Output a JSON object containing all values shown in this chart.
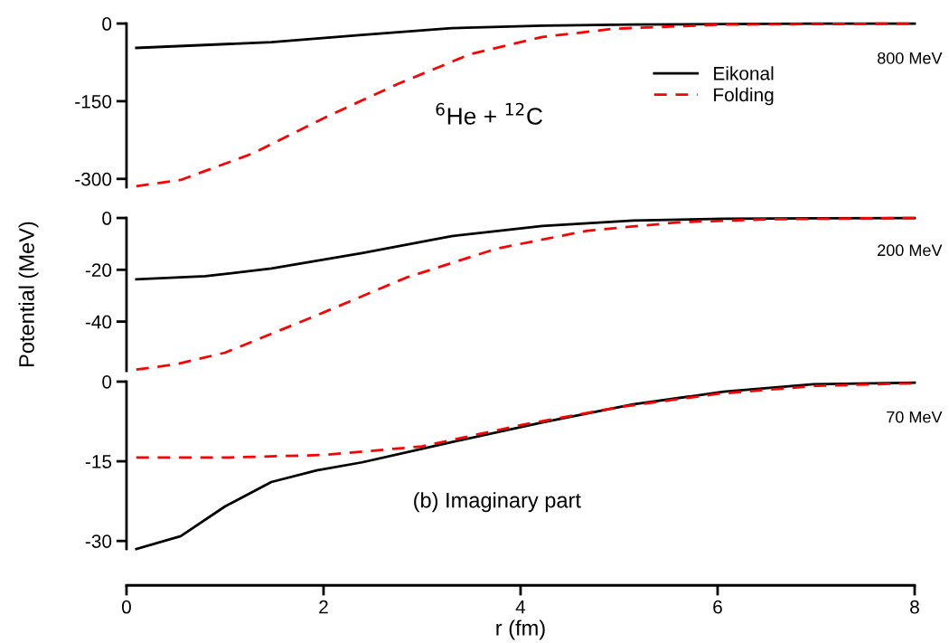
{
  "chart_data": [
    {
      "type": "line",
      "annotations": [
        "800 MeV",
        "$^{6}$He + $^{12}$C"
      ],
      "legend": "right",
      "tick_labels": "y",
      "xlim": [
        0,
        8
      ],
      "xticks": [
        0,
        2,
        4,
        6,
        8
      ],
      "ylim": [
        -316,
        0
      ],
      "yticks": [
        0,
        -150,
        -300
      ],
      "grid": false,
      "series": [
        {
          "name": "Eikonal",
          "color": "#000000",
          "line_style": "solid",
          "x": [
            0.1,
            1.47,
            2.39,
            3.3,
            4.22,
            5.14,
            6.06,
            7.0,
            8.0
          ],
          "values": [
            -47,
            -36,
            -22,
            -9,
            -4,
            -2,
            -1,
            0,
            0
          ]
        },
        {
          "name": "Folding",
          "color": "#ff0000",
          "line_style": "dashed",
          "x": [
            0.1,
            0.55,
            1.28,
            2.02,
            2.75,
            3.49,
            4.22,
            4.95,
            6.06,
            7.0,
            8.0
          ],
          "values": [
            -314,
            -302,
            -251,
            -181,
            -117,
            -59,
            -26,
            -10,
            -2,
            -1,
            0
          ]
        }
      ]
    },
    {
      "type": "line",
      "annotations": [
        "200 MeV"
      ],
      "ylabel": "Potential (MeV)",
      "legend": false,
      "tick_labels": "y",
      "xlim": [
        0,
        8
      ],
      "xticks": [
        0,
        2,
        4,
        6,
        8
      ],
      "ylim": [
        -59,
        0
      ],
      "yticks": [
        0,
        -20,
        -40
      ],
      "grid": false,
      "series": [
        {
          "color": "#000000",
          "line_style": "solid",
          "x": [
            0.1,
            0.8,
            1.47,
            2.39,
            3.3,
            4.22,
            5.14,
            6.06,
            7.0,
            8.0
          ],
          "values": [
            -23.7,
            -22.5,
            -19.5,
            -13.6,
            -7,
            -3.1,
            -1,
            -0.3,
            -0.1,
            0
          ]
        },
        {
          "color": "#ff0000",
          "line_style": "dashed",
          "x": [
            0.1,
            0.5,
            1.0,
            1.93,
            2.84,
            3.76,
            4.68,
            5.6,
            6.5,
            8.0
          ],
          "values": [
            -58.5,
            -56.5,
            -52,
            -37.6,
            -23,
            -11.8,
            -4.9,
            -1.7,
            -0.5,
            0
          ]
        }
      ]
    },
    {
      "type": "line",
      "annotations": [
        "70 MeV",
        "(b) Imaginary part"
      ],
      "xlabel": "r (fm)",
      "legend": false,
      "xlim": [
        0,
        8
      ],
      "xticks": [
        0,
        2,
        4,
        6,
        8
      ],
      "ylim": [
        -31.5,
        0
      ],
      "yticks": [
        0,
        -15,
        -30
      ],
      "grid": false,
      "series": [
        {
          "color": "#000000",
          "line_style": "solid",
          "x": [
            0.1,
            0.55,
            1.0,
            1.47,
            1.93,
            2.39,
            3.3,
            4.22,
            5.14,
            6.06,
            6.97,
            8.0
          ],
          "values": [
            -31.5,
            -29.1,
            -23.5,
            -18.9,
            -16.7,
            -15.2,
            -11.4,
            -7.7,
            -4.3,
            -1.9,
            -0.5,
            -0.2
          ]
        },
        {
          "color": "#ff0000",
          "line_style": "dashed",
          "x": [
            0.1,
            1.0,
            2.0,
            3.0,
            4.0,
            5.0,
            6.0,
            7.0,
            8.0
          ],
          "values": [
            -14.3,
            -14.3,
            -13.8,
            -12.2,
            -8.2,
            -4.8,
            -2.3,
            -0.8,
            -0.3
          ]
        }
      ]
    }
  ]
}
